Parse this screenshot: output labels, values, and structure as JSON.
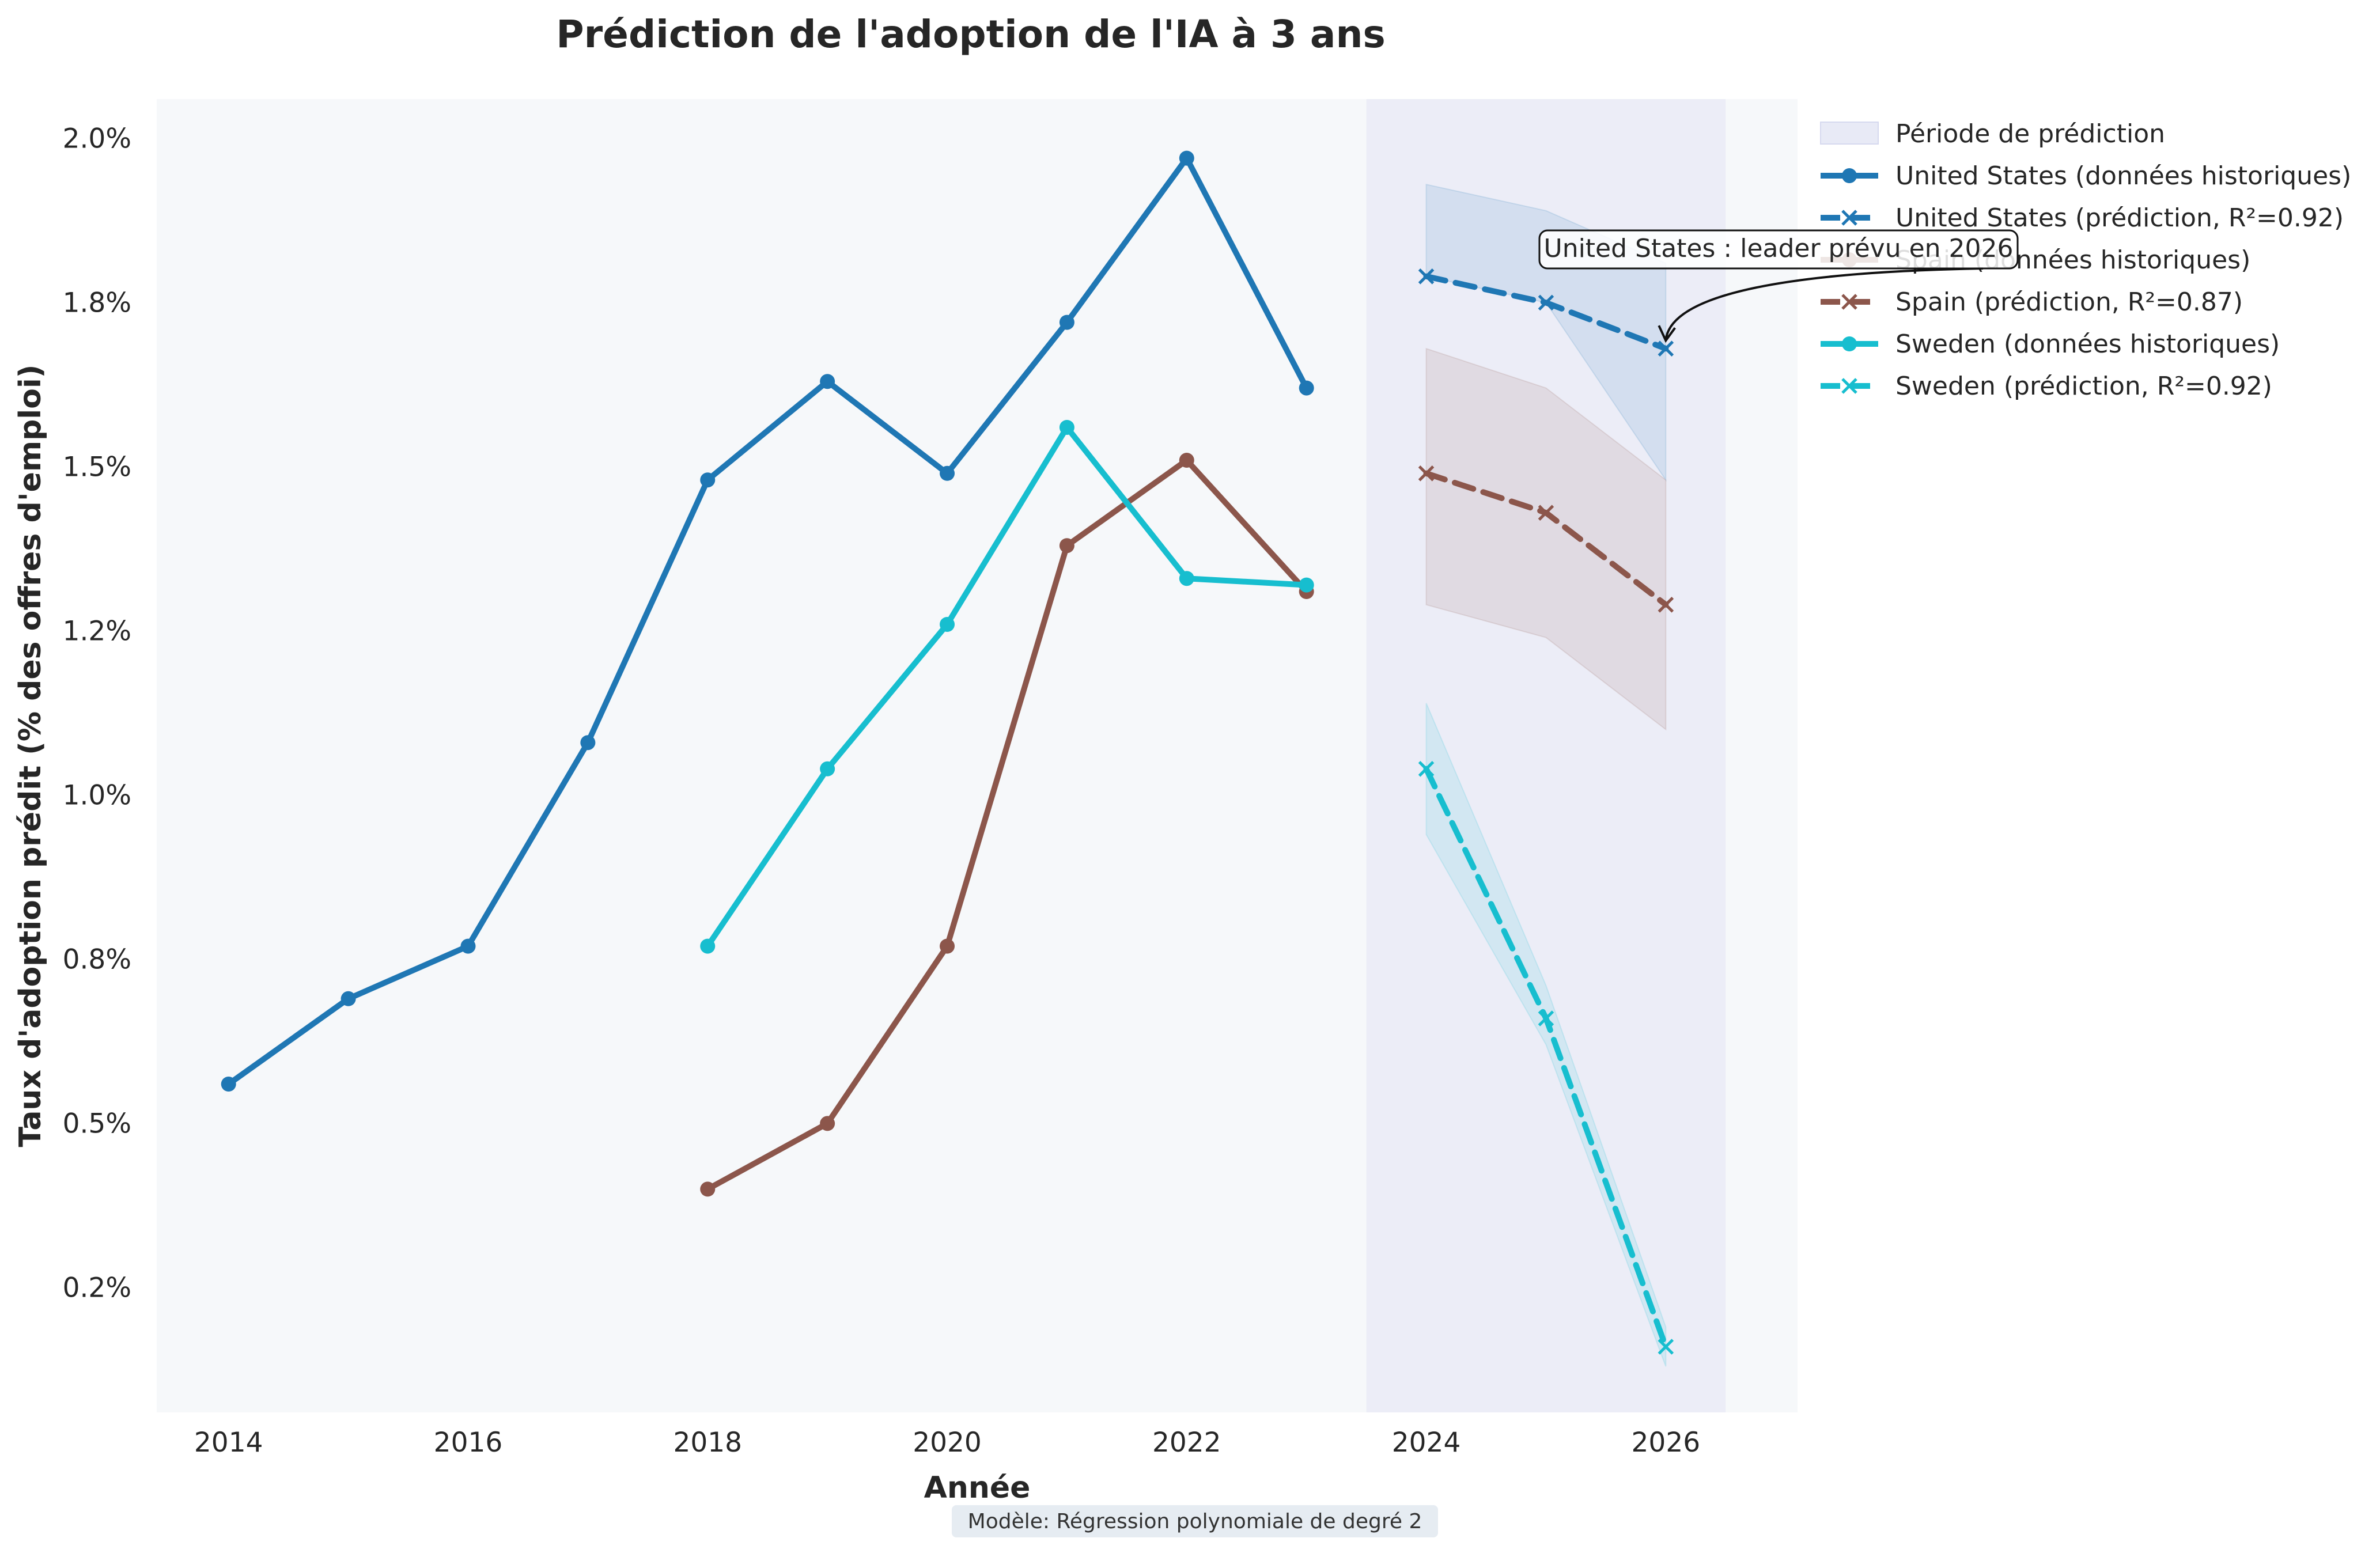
{
  "chart_data": {
    "type": "line",
    "title": "Prédiction de l'adoption de l'IA à 3 ans",
    "xlabel": "Année",
    "ylabel": "Taux d'adoption prédit (% des offres d'emploi)",
    "x_ticks": [
      "2014",
      "2016",
      "2018",
      "2020",
      "2022",
      "2024",
      "2026"
    ],
    "y_ticks": [
      "0.2%",
      "0.5%",
      "0.8%",
      "1.0%",
      "1.2%",
      "1.5%",
      "1.8%",
      "2.0%"
    ],
    "xlim": [
      2013.4,
      2027.1
    ],
    "ylim": [
      0.06,
      2.06
    ],
    "grid": false,
    "legend_position": "outside right, top",
    "prediction_period": {
      "label": "Période de prédiction",
      "x_range": [
        2023.5,
        2026.5
      ],
      "color": "#e8eaf6"
    },
    "series": [
      {
        "name": "United States (données historiques)",
        "kind": "historical",
        "color": "#1f77b4",
        "x": [
          2014,
          2015,
          2016,
          2017,
          2018,
          2019,
          2020,
          2021,
          2022,
          2023
        ],
        "y": [
          0.56,
          0.69,
          0.77,
          1.08,
          1.48,
          1.63,
          1.49,
          1.72,
          1.97,
          1.62
        ]
      },
      {
        "name": "United States (prédiction, R²=0.92)",
        "kind": "prediction",
        "color": "#1f77b4",
        "x": [
          2024,
          2025,
          2026
        ],
        "y": [
          1.79,
          1.75,
          1.68
        ],
        "ci_lower": [
          null,
          null,
          1.48
        ],
        "ci_upper": [
          1.93,
          1.89,
          1.81
        ]
      },
      {
        "name": "Spain (données historiques)",
        "kind": "historical",
        "color": "#8c564b",
        "x": [
          2018,
          2019,
          2020,
          2021,
          2022,
          2023
        ],
        "y": [
          0.4,
          0.5,
          0.77,
          1.38,
          1.51,
          1.31
        ]
      },
      {
        "name": "Spain (prédiction, R²=0.87)",
        "kind": "prediction",
        "color": "#8c564b",
        "x": [
          2024,
          2025,
          2026
        ],
        "y": [
          1.49,
          1.43,
          1.29
        ],
        "ci_lower": [
          1.29,
          1.24,
          1.1
        ],
        "ci_upper": [
          1.68,
          1.62,
          1.48
        ]
      },
      {
        "name": "Sweden (données historiques)",
        "kind": "historical",
        "color": "#17becf",
        "x": [
          2018,
          2019,
          2020,
          2021,
          2022,
          2023
        ],
        "y": [
          0.77,
          1.04,
          1.26,
          1.56,
          1.33,
          1.32
        ]
      },
      {
        "name": "Sweden (prédiction, R²=0.92)",
        "kind": "prediction",
        "color": "#17becf",
        "x": [
          2024,
          2025,
          2026
        ],
        "y": [
          1.04,
          0.66,
          0.16
        ],
        "ci_lower": [
          0.94,
          0.62,
          0.13
        ],
        "ci_upper": [
          1.14,
          0.71,
          0.19
        ]
      }
    ],
    "annotations": [
      {
        "text": "United States : leader prévu en 2026",
        "points_to": {
          "x": 2026,
          "y": 1.68
        }
      }
    ],
    "footnote": "Modèle: Régression polynomiale de degré 2"
  }
}
